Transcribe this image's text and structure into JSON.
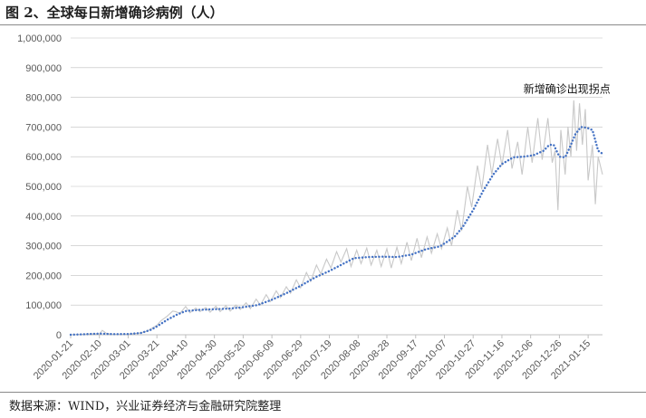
{
  "header": {
    "title": "图 2、全球每日新增确诊病例（人）"
  },
  "footer": {
    "source": "数据来源：WIND，兴业证券经济与金融研究院整理"
  },
  "colors": {
    "daily_line": "#c8c8c8",
    "ma_line": "#4472c4",
    "axis": "#bfbfbf",
    "text": "#595959"
  },
  "chart_data": {
    "type": "line",
    "title": "",
    "xlabel": "",
    "ylabel": "",
    "ylim": [
      0,
      1000000
    ],
    "y_ticks": [
      "0",
      "100,000",
      "200,000",
      "300,000",
      "400,000",
      "500,000",
      "600,000",
      "700,000",
      "800,000",
      "900,000",
      "1,000,000"
    ],
    "y_tick_values": [
      0,
      100000,
      200000,
      300000,
      400000,
      500000,
      600000,
      700000,
      800000,
      900000,
      1000000
    ],
    "x_range": [
      "2020-01-21",
      "2021-01-25"
    ],
    "x_ticks": [
      "2020-01-21",
      "2020-02-10",
      "2020-03-01",
      "2020-03-21",
      "2020-04-10",
      "2020-04-30",
      "2020-05-20",
      "2020-06-09",
      "2020-06-29",
      "2020-07-19",
      "2020-08-08",
      "2020-08-28",
      "2020-09-17",
      "2020-10-07",
      "2020-10-27",
      "2020-11-16",
      "2020-12-06",
      "2020-12-26",
      "2021-01-15"
    ],
    "annotation": {
      "text": "新增确诊出现拐点",
      "x": "2020-12-01",
      "y": 815000
    },
    "series": [
      {
        "style": "solid-gray",
        "x": [
          "2020-01-21",
          "2020-02-01",
          "2020-02-05",
          "2020-02-10",
          "2020-02-12",
          "2020-02-15",
          "2020-02-20",
          "2020-03-01",
          "2020-03-08",
          "2020-03-14",
          "2020-03-21",
          "2020-03-24",
          "2020-03-28",
          "2020-04-01",
          "2020-04-03",
          "2020-04-06",
          "2020-04-10",
          "2020-04-13",
          "2020-04-17",
          "2020-04-20",
          "2020-04-24",
          "2020-04-27",
          "2020-05-01",
          "2020-05-04",
          "2020-05-08",
          "2020-05-11",
          "2020-05-15",
          "2020-05-18",
          "2020-05-22",
          "2020-05-25",
          "2020-05-29",
          "2020-06-01",
          "2020-06-05",
          "2020-06-08",
          "2020-06-12",
          "2020-06-15",
          "2020-06-19",
          "2020-06-22",
          "2020-06-26",
          "2020-06-29",
          "2020-07-03",
          "2020-07-06",
          "2020-07-10",
          "2020-07-13",
          "2020-07-17",
          "2020-07-20",
          "2020-07-24",
          "2020-07-27",
          "2020-07-31",
          "2020-08-03",
          "2020-08-07",
          "2020-08-10",
          "2020-08-14",
          "2020-08-17",
          "2020-08-21",
          "2020-08-24",
          "2020-08-28",
          "2020-08-31",
          "2020-09-04",
          "2020-09-07",
          "2020-09-11",
          "2020-09-14",
          "2020-09-18",
          "2020-09-21",
          "2020-09-25",
          "2020-09-28",
          "2020-10-02",
          "2020-10-05",
          "2020-10-09",
          "2020-10-12",
          "2020-10-16",
          "2020-10-19",
          "2020-10-23",
          "2020-10-26",
          "2020-10-30",
          "2020-11-02",
          "2020-11-06",
          "2020-11-09",
          "2020-11-13",
          "2020-11-16",
          "2020-11-20",
          "2020-11-23",
          "2020-11-27",
          "2020-11-30",
          "2020-12-04",
          "2020-12-07",
          "2020-12-11",
          "2020-12-14",
          "2020-12-18",
          "2020-12-21",
          "2020-12-23",
          "2020-12-25",
          "2020-12-27",
          "2020-12-30",
          "2021-01-01",
          "2021-01-03",
          "2021-01-05",
          "2021-01-07",
          "2021-01-09",
          "2021-01-11",
          "2021-01-13",
          "2021-01-15",
          "2021-01-18",
          "2021-01-20",
          "2021-01-22",
          "2021-01-25"
        ],
        "y": [
          0,
          2000,
          3000,
          2500,
          15000,
          4000,
          1500,
          2000,
          5000,
          12000,
          32000,
          48000,
          62000,
          80000,
          78000,
          72000,
          95000,
          74000,
          90000,
          78000,
          92000,
          76000,
          96000,
          78000,
          98000,
          80000,
          100000,
          85000,
          108000,
          88000,
          120000,
          100000,
          135000,
          112000,
          148000,
          125000,
          162000,
          140000,
          185000,
          158000,
          210000,
          180000,
          235000,
          205000,
          255000,
          225000,
          280000,
          245000,
          290000,
          230000,
          285000,
          240000,
          292000,
          235000,
          285000,
          230000,
          290000,
          225000,
          295000,
          240000,
          312000,
          250000,
          325000,
          260000,
          330000,
          275000,
          340000,
          290000,
          360000,
          300000,
          420000,
          350000,
          500000,
          430000,
          570000,
          490000,
          640000,
          540000,
          660000,
          570000,
          690000,
          560000,
          650000,
          540000,
          700000,
          580000,
          730000,
          590000,
          730000,
          580000,
          620000,
          420000,
          690000,
          540000,
          700000,
          600000,
          790000,
          620000,
          780000,
          640000,
          760000,
          520000,
          640000,
          440000,
          600000,
          540000
        ]
      },
      {
        "style": "dotted-blue",
        "x": [
          "2020-01-21",
          "2020-02-01",
          "2020-02-10",
          "2020-02-20",
          "2020-03-01",
          "2020-03-10",
          "2020-03-17",
          "2020-03-21",
          "2020-03-28",
          "2020-04-04",
          "2020-04-10",
          "2020-04-20",
          "2020-04-30",
          "2020-05-10",
          "2020-05-20",
          "2020-05-30",
          "2020-06-09",
          "2020-06-19",
          "2020-06-29",
          "2020-07-09",
          "2020-07-19",
          "2020-07-29",
          "2020-08-05",
          "2020-08-15",
          "2020-08-25",
          "2020-09-04",
          "2020-09-14",
          "2020-09-24",
          "2020-10-04",
          "2020-10-14",
          "2020-10-20",
          "2020-10-27",
          "2020-11-03",
          "2020-11-10",
          "2020-11-16",
          "2020-11-24",
          "2020-12-01",
          "2020-12-08",
          "2020-12-15",
          "2020-12-19",
          "2020-12-22",
          "2020-12-26",
          "2020-12-30",
          "2021-01-03",
          "2021-01-06",
          "2021-01-10",
          "2021-01-14",
          "2021-01-18",
          "2021-01-22",
          "2021-01-25"
        ],
        "y": [
          0,
          2000,
          4000,
          2000,
          2500,
          6000,
          17000,
          28000,
          50000,
          68000,
          80000,
          84000,
          86000,
          88000,
          93000,
          100000,
          118000,
          140000,
          165000,
          193000,
          215000,
          240000,
          258000,
          262000,
          263000,
          262000,
          270000,
          288000,
          298000,
          330000,
          365000,
          420000,
          485000,
          540000,
          575000,
          598000,
          600000,
          605000,
          620000,
          640000,
          640000,
          600000,
          598000,
          640000,
          675000,
          700000,
          698000,
          690000,
          620000,
          610000
        ]
      }
    ]
  }
}
